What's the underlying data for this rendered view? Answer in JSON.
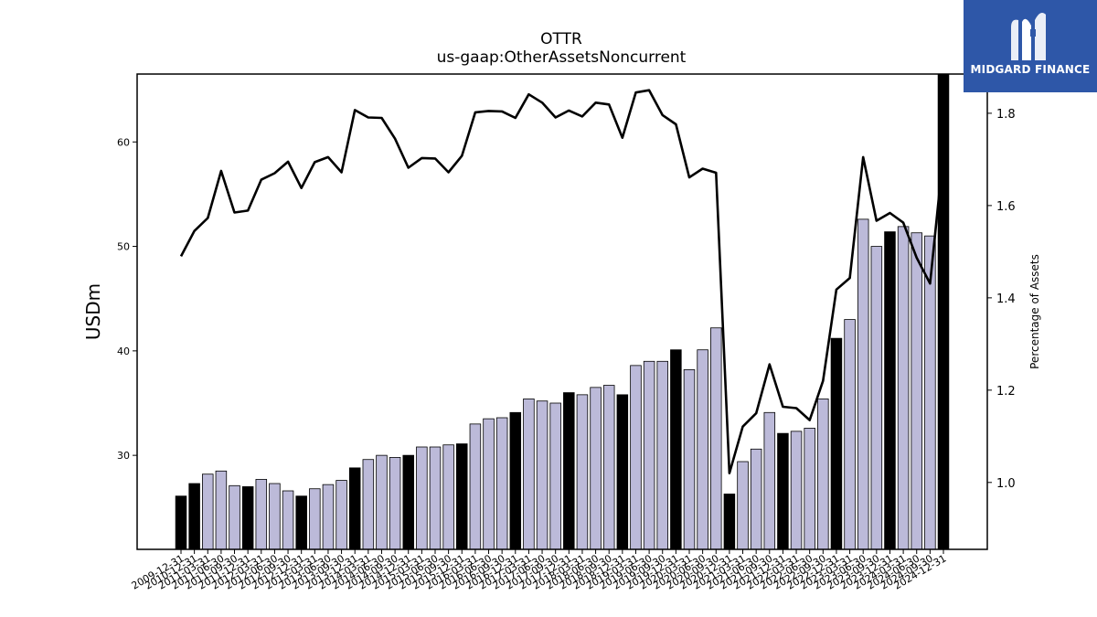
{
  "chart_data": {
    "type": "bar",
    "title": "OTTR",
    "subtitle": "us-gaap:OtherAssetsNoncurrent",
    "ylabel": "USDm",
    "y2label": "Percentage of Assets",
    "ylim": [
      21,
      66.5
    ],
    "y2lim": [
      0.855,
      1.885
    ],
    "yticks": [
      30,
      40,
      50,
      60
    ],
    "y2ticks": [
      1.0,
      1.2,
      1.4,
      1.6,
      1.8
    ],
    "grid": false,
    "bar_colors": {
      "q4": "#000000",
      "other": "#bcbad9",
      "edge": "#000000"
    },
    "line_color": "#000000",
    "categories": [
      "2009-12-31",
      "2010-12-31",
      "2011-03-31",
      "2011-06-30",
      "2011-09-30",
      "2011-12-31",
      "2012-03-31",
      "2012-06-30",
      "2012-09-30",
      "2012-12-31",
      "2013-03-31",
      "2013-06-30",
      "2013-09-30",
      "2013-12-31",
      "2014-03-31",
      "2014-06-30",
      "2014-09-30",
      "2014-12-31",
      "2015-03-31",
      "2015-06-30",
      "2015-09-30",
      "2015-12-31",
      "2016-03-31",
      "2016-06-30",
      "2016-09-30",
      "2016-12-31",
      "2017-03-31",
      "2017-06-30",
      "2017-09-30",
      "2017-12-31",
      "2018-03-31",
      "2018-06-30",
      "2018-09-30",
      "2018-12-31",
      "2019-03-31",
      "2019-06-30",
      "2019-09-30",
      "2019-12-31",
      "2020-03-31",
      "2020-06-30",
      "2020-09-30",
      "2020-12-31",
      "2021-03-31",
      "2021-06-30",
      "2021-09-30",
      "2021-12-31",
      "2022-03-31",
      "2022-06-30",
      "2022-09-30",
      "2022-12-31",
      "2023-03-31",
      "2023-06-30",
      "2023-09-30",
      "2023-12-31",
      "2024-03-31",
      "2024-06-30",
      "2024-09-30",
      "2024-12-31"
    ],
    "series": [
      {
        "kind": "bar",
        "values": [
          26.1,
          27.3,
          28.2,
          28.5,
          27.1,
          27.0,
          27.7,
          27.3,
          26.6,
          26.1,
          26.8,
          27.2,
          27.6,
          28.8,
          29.6,
          30.0,
          29.8,
          30.0,
          30.8,
          30.8,
          31.0,
          31.1,
          33.0,
          33.5,
          33.6,
          34.1,
          35.4,
          35.2,
          35.0,
          36.0,
          35.8,
          36.5,
          36.7,
          35.8,
          38.6,
          39.0,
          39.0,
          40.1,
          38.2,
          40.1,
          42.2,
          26.3,
          29.4,
          30.6,
          34.1,
          32.1,
          32.3,
          32.6,
          35.4,
          41.2,
          43.0,
          52.6,
          50.0,
          51.4,
          51.9,
          51.3,
          51.0,
          66.5
        ]
      },
      {
        "kind": "line",
        "axis": "right",
        "values": [
          1.49,
          1.545,
          1.573,
          1.675,
          1.585,
          1.589,
          1.656,
          1.67,
          1.695,
          1.638,
          1.694,
          1.705,
          1.672,
          1.807,
          1.791,
          1.79,
          1.745,
          1.682,
          1.703,
          1.702,
          1.672,
          1.708,
          1.802,
          1.805,
          1.804,
          1.79,
          1.841,
          1.823,
          1.791,
          1.806,
          1.793,
          1.823,
          1.819,
          1.747,
          1.845,
          1.85,
          1.796,
          1.776,
          1.661,
          1.68,
          1.671,
          1.02,
          1.121,
          1.15,
          1.256,
          1.164,
          1.161,
          1.135,
          1.22,
          1.418,
          1.443,
          1.705,
          1.567,
          1.584,
          1.563,
          1.487,
          1.431,
          1.715
        ]
      }
    ]
  },
  "logo": {
    "name": "MIDGARD FINANCE"
  }
}
